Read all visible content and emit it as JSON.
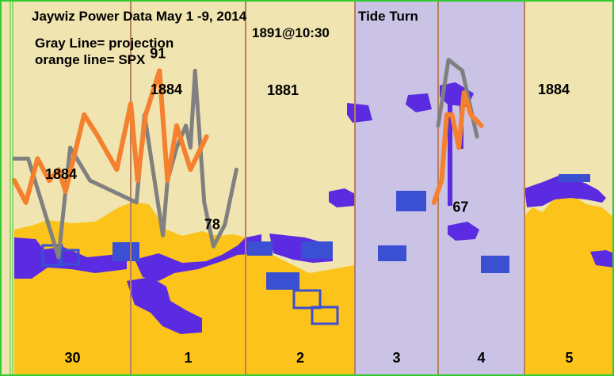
{
  "title": "Jaywiz Power Data May 1 -9, 2014",
  "legend": {
    "line1": "Gray Line= projection",
    "line2": "orange line= SPX"
  },
  "annotations": {
    "tide_turn": "Tide Turn",
    "top_note": "1891@10:30",
    "level_a": "1884",
    "level_b": "1884",
    "level_c": "1881",
    "level_d": "1884",
    "peak": "91",
    "low_78": "78",
    "low_67": "67"
  },
  "colors": {
    "background": "#f0e4b0",
    "highlight_panel": "#cbc3e6",
    "orange_area": "#fcc31a",
    "blob": "#5a2be0",
    "box": "#3a4fd2",
    "spx_line": "#f5802e",
    "projection_line": "#808080",
    "divider": "#b8805e",
    "frame": "#33cc33"
  },
  "chart_data": {
    "type": "line",
    "title": "Jaywiz Power Data May 1 -9, 2014",
    "categories": [
      "30",
      "1",
      "2",
      "3",
      "4",
      "5"
    ],
    "highlighted_categories": [
      "3",
      "4"
    ],
    "series": [
      {
        "name": "Gray Line= projection",
        "values": [
          1884,
          1884,
          1875,
          1885,
          1882,
          1880,
          1888,
          1877,
          1882,
          1885,
          1887,
          1885,
          1892,
          1880,
          1876,
          1878,
          1883,
          1887,
          1893,
          1892,
          1886
        ],
        "x": [
          1.0,
          1.12,
          1.38,
          1.48,
          1.65,
          2.05,
          2.12,
          2.28,
          2.32,
          2.4,
          2.48,
          2.52,
          2.56,
          2.64,
          2.72,
          2.82,
          2.92,
          5.0,
          5.12,
          5.28,
          5.45
        ]
      },
      {
        "name": "orange line= SPX",
        "values": [
          1882,
          1880,
          1884,
          1882,
          1883,
          1881,
          1888,
          1886,
          1883,
          1889,
          1882,
          1888,
          1892,
          1882,
          1887,
          1883,
          1886,
          1880,
          1882,
          1888,
          1888,
          1885,
          1890,
          1888,
          1887
        ],
        "x": [
          1.0,
          1.1,
          1.2,
          1.3,
          1.38,
          1.44,
          1.6,
          1.72,
          1.88,
          2.0,
          2.06,
          2.13,
          2.25,
          2.32,
          2.4,
          2.52,
          2.66,
          4.95,
          5.04,
          5.1,
          5.16,
          5.24,
          5.3,
          5.38,
          5.5
        ]
      }
    ],
    "labels": [
      {
        "text": "91",
        "x": 2.25,
        "y": 1892
      },
      {
        "text": "78",
        "x": 2.82,
        "y": 1878
      },
      {
        "text": "67",
        "x": 5.04,
        "y": 1879
      }
    ],
    "ylim": [
      1866,
      1897
    ],
    "grid": false,
    "legend_position": "top-left"
  }
}
